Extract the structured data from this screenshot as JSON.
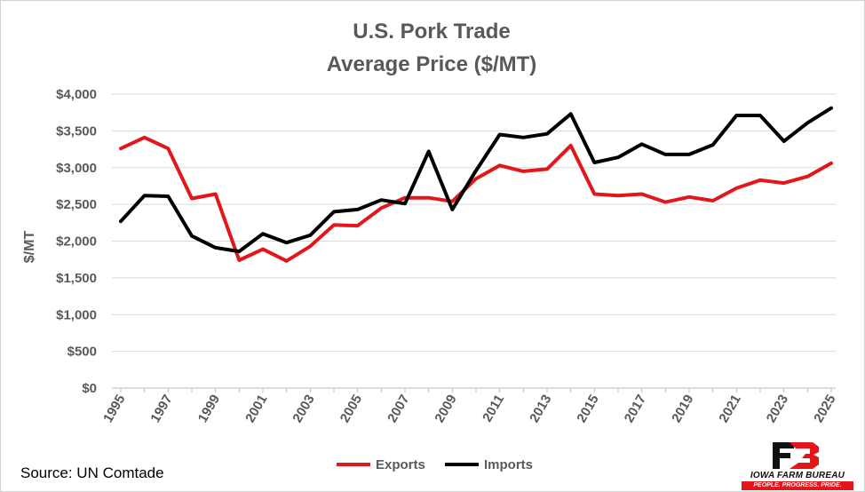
{
  "chart_data": {
    "type": "line",
    "title_lines": [
      "U.S. Pork Trade",
      "Average Price ($/MT)"
    ],
    "ylabel": "$/MT",
    "xlabel": "",
    "ylim": [
      0,
      4000
    ],
    "y_ticks": [
      0,
      500,
      1000,
      1500,
      2000,
      2500,
      3000,
      3500,
      4000
    ],
    "y_tick_labels": [
      "$0",
      "$500",
      "$1,000",
      "$1,500",
      "$2,000",
      "$2,500",
      "$3,000",
      "$3,500",
      "$4,000"
    ],
    "x": [
      1995,
      1996,
      1997,
      1998,
      1999,
      2000,
      2001,
      2002,
      2003,
      2004,
      2005,
      2006,
      2007,
      2008,
      2009,
      2010,
      2011,
      2012,
      2013,
      2014,
      2015,
      2016,
      2017,
      2018,
      2019,
      2020,
      2021,
      2022,
      2023,
      2024,
      2025
    ],
    "x_tick_labels": [
      "1995",
      "1997",
      "1999",
      "2001",
      "2003",
      "2005",
      "2007",
      "2009",
      "2011",
      "2013",
      "2015",
      "2017",
      "2019",
      "2021",
      "2023",
      "2025"
    ],
    "grid": "horizontal",
    "legend_position": "bottom",
    "series": [
      {
        "name": "Exports",
        "color": "#e2161b",
        "values": [
          3260,
          3410,
          3260,
          2580,
          2640,
          1740,
          1890,
          1730,
          1930,
          2220,
          2210,
          2450,
          2590,
          2590,
          2540,
          2850,
          3030,
          2950,
          2980,
          3300,
          2640,
          2620,
          2640,
          2530,
          2600,
          2550,
          2720,
          2830,
          2790,
          2880,
          3060
        ]
      },
      {
        "name": "Imports",
        "color": "#000000",
        "values": [
          2270,
          2620,
          2610,
          2070,
          1910,
          1860,
          2100,
          1980,
          2080,
          2400,
          2430,
          2560,
          2510,
          3220,
          2430,
          2960,
          3450,
          3410,
          3460,
          3730,
          3070,
          3140,
          3320,
          3180,
          3180,
          3310,
          3710,
          3710,
          3360,
          3610,
          3810
        ]
      }
    ]
  },
  "source_text": "Source: UN Comtade",
  "logo": {
    "icon": "iowa-farm-bureau-fb-logo",
    "name": "IOWA FARM BUREAU",
    "tagline": "PEOPLE. PROGRESS. PRIDE.",
    "color": "#e2161b"
  }
}
